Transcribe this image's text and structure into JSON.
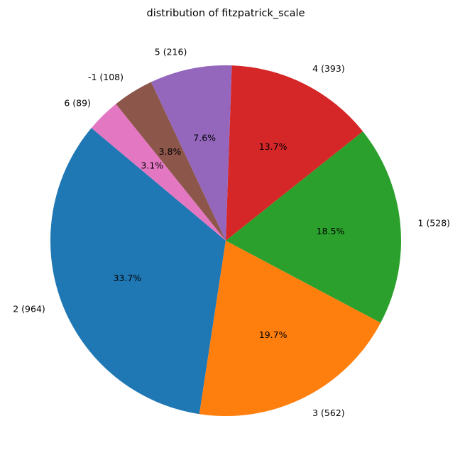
{
  "chart_data": {
    "type": "pie",
    "title": "distribution of fitzpatrick_scale",
    "start_angle_deg": 140,
    "direction": "counterclockwise",
    "slices": [
      {
        "label": "2 (964)",
        "category": "2",
        "value": 964,
        "percent_label": "33.7%",
        "color": "#1f77b4"
      },
      {
        "label": "3 (562)",
        "category": "3",
        "value": 562,
        "percent_label": "19.7%",
        "color": "#ff7f0e"
      },
      {
        "label": "1 (528)",
        "category": "1",
        "value": 528,
        "percent_label": "18.5%",
        "color": "#2ca02c"
      },
      {
        "label": "4 (393)",
        "category": "4",
        "value": 393,
        "percent_label": "13.7%",
        "color": "#d62728"
      },
      {
        "label": "5 (216)",
        "category": "5",
        "value": 216,
        "percent_label": "7.6%",
        "color": "#9467bd"
      },
      {
        "label": "-1 (108)",
        "category": "-1",
        "value": 108,
        "percent_label": "3.8%",
        "color": "#8c564b"
      },
      {
        "label": "6 (89)",
        "category": "6",
        "value": 89,
        "percent_label": "3.1%",
        "color": "#e377c2"
      }
    ]
  }
}
